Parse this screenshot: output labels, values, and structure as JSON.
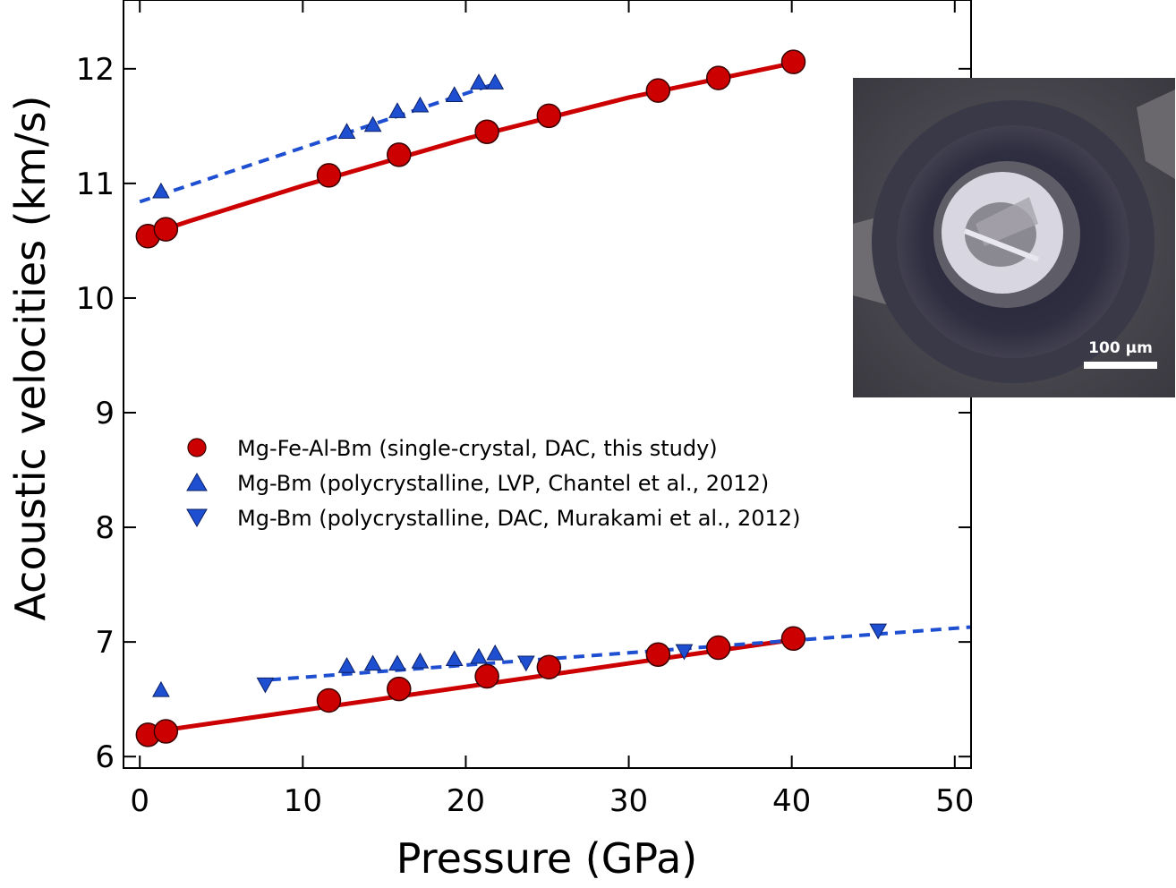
{
  "chart_data": {
    "type": "scatter",
    "xlabel": "Pressure (GPa)",
    "ylabel": "Acoustic velocities (km/s)",
    "xlim": [
      -1,
      51
    ],
    "ylim": [
      5.9,
      12.6
    ],
    "xticks": [
      "0",
      "10",
      "20",
      "30",
      "40",
      "50"
    ],
    "yticks": [
      "6",
      "7",
      "8",
      "9",
      "10",
      "11",
      "12"
    ],
    "grid": false,
    "legend_position": "center-left",
    "series": [
      {
        "name": "Mg-Fe-Al-Bm (single-crystal, DAC, this study)",
        "marker": "circle",
        "color": "#cc0000",
        "vp": {
          "x": [
            0.5,
            1.6,
            11.6,
            15.9,
            21.3,
            25.1,
            31.8,
            35.5,
            40.1
          ],
          "y": [
            10.54,
            10.6,
            11.07,
            11.25,
            11.45,
            11.59,
            11.81,
            11.92,
            12.06
          ]
        },
        "vs": {
          "x": [
            0.5,
            1.6,
            11.6,
            15.9,
            21.3,
            25.1,
            31.8,
            35.5,
            40.1
          ],
          "y": [
            6.19,
            6.22,
            6.49,
            6.59,
            6.7,
            6.78,
            6.89,
            6.95,
            7.03
          ]
        }
      },
      {
        "name": "Mg-Bm (polycrystalline, LVP, Chantel et al., 2012)",
        "marker": "triangle-up",
        "color": "#1f4fd1",
        "vp": {
          "x": [
            1.3,
            12.7,
            14.3,
            15.8,
            17.2,
            19.3,
            20.8,
            21.8
          ],
          "y": [
            10.93,
            11.45,
            11.51,
            11.63,
            11.68,
            11.77,
            11.88,
            11.88
          ]
        },
        "vs": {
          "x": [
            1.3,
            12.7,
            14.3,
            15.8,
            17.2,
            19.3,
            20.8,
            21.8
          ],
          "y": [
            6.58,
            6.79,
            6.81,
            6.81,
            6.83,
            6.85,
            6.87,
            6.9
          ]
        }
      },
      {
        "name": "Mg-Bm (polycrystalline, DAC, Murakami et al., 2012)",
        "marker": "triangle-down",
        "color": "#1f4fd1",
        "vp": {
          "x": [],
          "y": []
        },
        "vs": {
          "x": [
            7.7,
            23.7,
            33.4,
            45.3
          ],
          "y": [
            6.63,
            6.82,
            6.92,
            7.1
          ]
        }
      }
    ],
    "fit_lines": [
      {
        "series": "Mg-Fe-Al-Bm vp fit",
        "style": "solid",
        "color": "#cc0000",
        "x": [
          0.5,
          3,
          10,
          20,
          30,
          40.1
        ],
        "y": [
          10.55,
          10.67,
          10.98,
          11.39,
          11.75,
          12.05
        ]
      },
      {
        "series": "Mg-Fe-Al-Bm vs fit",
        "style": "solid",
        "color": "#cc0000",
        "x": [
          0.5,
          40.1
        ],
        "y": [
          6.21,
          7.02
        ]
      },
      {
        "series": "Mg-Bm vp fit",
        "style": "dashed",
        "color": "#1f4fd1",
        "x": [
          0,
          21.8
        ],
        "y": [
          10.84,
          11.87
        ]
      },
      {
        "series": "Mg-Bm vs fit",
        "style": "dashed",
        "color": "#1f4fd1",
        "x": [
          8,
          51
        ],
        "y": [
          6.67,
          7.13
        ]
      }
    ]
  },
  "inset": {
    "scale_bar_label": "100 µm"
  }
}
